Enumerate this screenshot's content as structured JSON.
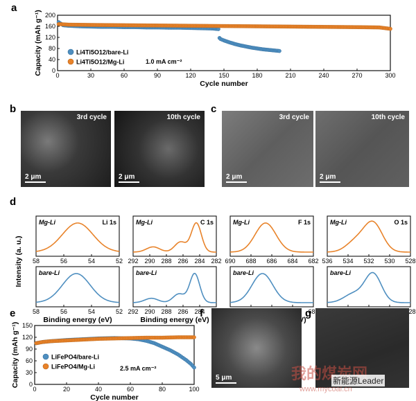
{
  "panels": {
    "a": "a",
    "b": "b",
    "c": "c",
    "d": "d",
    "e": "e",
    "f": "f",
    "g": "g"
  },
  "colors": {
    "blue": "#4f8fc0",
    "orange": "#e8832a",
    "blue_edge": "#2e6a99",
    "orange_edge": "#b85f12"
  },
  "panel_a": {
    "chart_data": {
      "type": "scatter",
      "xlabel": "Cycle number",
      "ylabel": "Capacity (mAh g⁻¹)",
      "xlim": [
        0,
        300
      ],
      "ylim": [
        0,
        200
      ],
      "xticks": [
        0,
        30,
        60,
        90,
        120,
        150,
        180,
        210,
        240,
        270,
        300
      ],
      "yticks": [
        0,
        40,
        80,
        120,
        160,
        200
      ],
      "series": [
        {
          "name": "Li4Ti5O12/bare-Li",
          "color": "#4f8fc0",
          "x": [
            1,
            5,
            10,
            20,
            30,
            40,
            50,
            60,
            70,
            80,
            90,
            100,
            110,
            120,
            130,
            140,
            145,
            146,
            147,
            150,
            155,
            160,
            165,
            170,
            175,
            180,
            185,
            190,
            195,
            200
          ],
          "y": [
            175,
            164,
            162,
            160,
            159,
            158,
            158,
            157,
            157,
            156,
            156,
            155,
            155,
            154,
            153,
            152,
            150,
            118,
            114,
            109,
            102,
            96,
            91,
            87,
            83,
            80,
            77,
            75,
            73,
            71
          ]
        },
        {
          "name": "Li4Ti5O12/Mg-Li",
          "color": "#e8832a",
          "x": [
            1,
            10,
            30,
            60,
            90,
            120,
            150,
            180,
            210,
            240,
            270,
            290,
            300
          ],
          "y": [
            168,
            166,
            165,
            164,
            163,
            162,
            161,
            160,
            159,
            158,
            157,
            156,
            151
          ]
        }
      ],
      "annotation": "1.0 mA cm⁻²"
    }
  },
  "panel_b": {
    "label1": "3rd cycle",
    "label2": "10th cycle",
    "scale": "2 μm"
  },
  "panel_c": {
    "label1": "3rd cycle",
    "label2": "10th cycle",
    "scale": "2 μm"
  },
  "panel_d": {
    "ylabel": "Intensity (a. u.)",
    "xlabel": "Binding energy (eV)",
    "top_sample": "Mg-Li",
    "bottom_sample": "bare-Li",
    "chart_data": [
      {
        "type": "line",
        "title": "Li 1s",
        "xlim": [
          58,
          52
        ],
        "xticks": [
          58,
          56,
          54,
          52
        ],
        "mg": [
          {
            "center": 55.0,
            "height": 1.0,
            "width": 1.1
          }
        ],
        "bare": [
          {
            "center": 55.1,
            "height": 1.0,
            "width": 1.0
          }
        ]
      },
      {
        "type": "line",
        "title": "C 1s",
        "xlim": [
          292,
          282
        ],
        "xticks": [
          292,
          290,
          288,
          286,
          284,
          282
        ],
        "mg": [
          {
            "center": 284.4,
            "height": 1.0,
            "width": 0.6
          },
          {
            "center": 286.3,
            "height": 0.35,
            "width": 0.7
          },
          {
            "center": 289.6,
            "height": 0.18,
            "width": 0.8
          }
        ],
        "bare": [
          {
            "center": 284.6,
            "height": 1.0,
            "width": 0.6
          },
          {
            "center": 286.5,
            "height": 0.3,
            "width": 0.7
          },
          {
            "center": 289.8,
            "height": 0.15,
            "width": 0.8
          }
        ]
      },
      {
        "type": "line",
        "title": "F 1s",
        "xlim": [
          690,
          682
        ],
        "xticks": [
          690,
          688,
          686,
          684,
          682
        ],
        "mg": [
          {
            "center": 686.6,
            "height": 1.0,
            "width": 1.0
          }
        ],
        "bare": [
          {
            "center": 686.9,
            "height": 1.0,
            "width": 1.0
          }
        ]
      },
      {
        "type": "line",
        "title": "O 1s",
        "xlim": [
          536,
          528
        ],
        "xticks": [
          536,
          534,
          532,
          530,
          528
        ],
        "mg": [
          {
            "center": 531.6,
            "height": 1.0,
            "width": 0.9
          },
          {
            "center": 533.3,
            "height": 0.35,
            "width": 0.9
          }
        ],
        "bare": [
          {
            "center": 531.6,
            "height": 1.0,
            "width": 0.8
          },
          {
            "center": 533.5,
            "height": 0.3,
            "width": 0.9
          }
        ]
      }
    ]
  },
  "panel_e": {
    "chart_data": {
      "type": "scatter",
      "xlabel": "Cycle number",
      "ylabel": "Capacity (mAh g⁻¹)",
      "xlim": [
        0,
        100
      ],
      "ylim": [
        0,
        150
      ],
      "xticks": [
        0,
        20,
        40,
        60,
        80,
        100
      ],
      "yticks": [
        0,
        30,
        60,
        90,
        120,
        150
      ],
      "series": [
        {
          "name": "LiFePO4/bare-Li",
          "color": "#4f8fc0",
          "x": [
            1,
            5,
            10,
            20,
            30,
            40,
            50,
            60,
            65,
            70,
            75,
            80,
            85,
            90,
            95,
            98,
            100
          ],
          "y": [
            105,
            108,
            110,
            113,
            115,
            117,
            118,
            117,
            115,
            111,
            105,
            96,
            87,
            76,
            62,
            52,
            43
          ]
        },
        {
          "name": "LiFePO4/Mg-Li",
          "color": "#e8832a",
          "x": [
            1,
            5,
            10,
            20,
            30,
            40,
            50,
            60,
            70,
            80,
            90,
            100
          ],
          "y": [
            105,
            108,
            110,
            112,
            114,
            116,
            117,
            118,
            119,
            119,
            120,
            120
          ]
        }
      ],
      "annotation": "2.5 mA cm⁻²"
    }
  },
  "panel_f": {
    "scale": "5 μm"
  },
  "watermark": {
    "text1": "我的煤炭网",
    "text2": "www.mycoal.cn",
    "text3": "新能源Leader"
  }
}
